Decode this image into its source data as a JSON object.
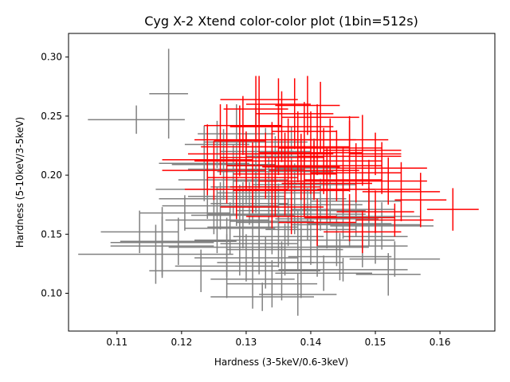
{
  "chart_data": {
    "type": "scatter",
    "title": "Cyg X-2 Xtend color-color plot (1bin=512s)",
    "xlabel": "Hardness (3-5keV/0.6-3keV)",
    "ylabel": "Hardness (5-10keV/3-5keV)",
    "xlim": [
      0.1025,
      0.1685
    ],
    "ylim": [
      0.068,
      0.32
    ],
    "xticks": [
      "0.11",
      "0.12",
      "0.13",
      "0.14",
      "0.15",
      "0.16"
    ],
    "yticks": [
      "0.10",
      "0.15",
      "0.20",
      "0.25",
      "0.30"
    ],
    "grid": false,
    "series": [
      {
        "color": "#808080",
        "points": [
          [
            0.113,
            0.247,
            0.0075,
            0.012
          ],
          [
            0.118,
            0.269,
            0.003,
            0.038
          ],
          [
            0.117,
            0.143,
            0.008,
            0.03
          ],
          [
            0.116,
            0.133,
            0.012,
            0.025
          ],
          [
            0.117,
            0.14,
            0.008,
            0.025
          ],
          [
            0.1195,
            0.144,
            0.009,
            0.02
          ],
          [
            0.1205,
            0.168,
            0.007,
            0.015
          ],
          [
            0.123,
            0.119,
            0.008,
            0.018
          ],
          [
            0.124,
            0.188,
            0.008,
            0.025
          ],
          [
            0.125,
            0.18,
            0.0085,
            0.03
          ],
          [
            0.1255,
            0.162,
            0.008,
            0.028
          ],
          [
            0.126,
            0.174,
            0.009,
            0.02
          ],
          [
            0.1265,
            0.209,
            0.008,
            0.03
          ],
          [
            0.127,
            0.139,
            0.009,
            0.025
          ],
          [
            0.127,
            0.123,
            0.008,
            0.027
          ],
          [
            0.1275,
            0.155,
            0.007,
            0.022
          ],
          [
            0.128,
            0.196,
            0.0085,
            0.03
          ],
          [
            0.1285,
            0.182,
            0.0075,
            0.025
          ],
          [
            0.129,
            0.145,
            0.007,
            0.03
          ],
          [
            0.1295,
            0.166,
            0.008,
            0.028
          ],
          [
            0.13,
            0.13,
            0.008,
            0.02
          ],
          [
            0.13,
            0.205,
            0.009,
            0.03
          ],
          [
            0.1305,
            0.176,
            0.006,
            0.018
          ],
          [
            0.131,
            0.156,
            0.007,
            0.03
          ],
          [
            0.131,
            0.112,
            0.0065,
            0.025
          ],
          [
            0.1315,
            0.19,
            0.007,
            0.022
          ],
          [
            0.132,
            0.142,
            0.006,
            0.026
          ],
          [
            0.132,
            0.167,
            0.008,
            0.03
          ],
          [
            0.1325,
            0.097,
            0.008,
            0.012
          ],
          [
            0.133,
            0.22,
            0.007,
            0.02
          ],
          [
            0.133,
            0.126,
            0.0075,
            0.022
          ],
          [
            0.1335,
            0.185,
            0.008,
            0.03
          ],
          [
            0.134,
            0.161,
            0.0065,
            0.028
          ],
          [
            0.134,
            0.108,
            0.007,
            0.02
          ],
          [
            0.1345,
            0.203,
            0.009,
            0.03
          ],
          [
            0.135,
            0.148,
            0.007,
            0.026
          ],
          [
            0.135,
            0.173,
            0.006,
            0.02
          ],
          [
            0.1355,
            0.119,
            0.006,
            0.025
          ],
          [
            0.136,
            0.195,
            0.008,
            0.03
          ],
          [
            0.136,
            0.137,
            0.009,
            0.022
          ],
          [
            0.1365,
            0.16,
            0.008,
            0.02
          ],
          [
            0.137,
            0.216,
            0.007,
            0.025
          ],
          [
            0.1375,
            0.18,
            0.008,
            0.03
          ],
          [
            0.138,
            0.145,
            0.005,
            0.025
          ],
          [
            0.138,
            0.099,
            0.006,
            0.018
          ],
          [
            0.1385,
            0.126,
            0.0065,
            0.03
          ],
          [
            0.139,
            0.192,
            0.008,
            0.028
          ],
          [
            0.1395,
            0.167,
            0.009,
            0.022
          ],
          [
            0.14,
            0.154,
            0.007,
            0.03
          ],
          [
            0.1405,
            0.206,
            0.006,
            0.025
          ],
          [
            0.141,
            0.139,
            0.008,
            0.025
          ],
          [
            0.1415,
            0.175,
            0.0065,
            0.022
          ],
          [
            0.142,
            0.117,
            0.0075,
            0.015
          ],
          [
            0.1425,
            0.163,
            0.008,
            0.025
          ],
          [
            0.143,
            0.188,
            0.007,
            0.03
          ],
          [
            0.144,
            0.145,
            0.009,
            0.022
          ],
          [
            0.1445,
            0.131,
            0.008,
            0.02
          ],
          [
            0.145,
            0.171,
            0.008,
            0.025
          ],
          [
            0.146,
            0.159,
            0.0065,
            0.02
          ],
          [
            0.147,
            0.178,
            0.007,
            0.028
          ],
          [
            0.148,
            0.14,
            0.007,
            0.018
          ],
          [
            0.149,
            0.165,
            0.008,
            0.025
          ],
          [
            0.15,
            0.148,
            0.005,
            0.023
          ],
          [
            0.151,
            0.157,
            0.008,
            0.02
          ],
          [
            0.152,
            0.116,
            0.005,
            0.018
          ],
          [
            0.153,
            0.129,
            0.007,
            0.015
          ],
          [
            0.1235,
            0.21,
            0.007,
            0.032
          ],
          [
            0.1255,
            0.226,
            0.005,
            0.02
          ],
          [
            0.1285,
            0.235,
            0.006,
            0.025
          ],
          [
            0.1315,
            0.228,
            0.008,
            0.03
          ],
          [
            0.1135,
            0.152,
            0.006,
            0.018
          ],
          [
            0.1385,
            0.17,
            0.01,
            0.03
          ],
          [
            0.147,
            0.158,
            0.01,
            0.01
          ],
          [
            0.145,
            0.12,
            0.01,
            0.01
          ],
          [
            0.129,
            0.18,
            0.011,
            0.012
          ]
        ]
      },
      {
        "color": "#ff0000",
        "points": [
          [
            0.127,
            0.218,
            0.006,
            0.042
          ],
          [
            0.129,
            0.229,
            0.004,
            0.03
          ],
          [
            0.13,
            0.212,
            0.008,
            0.025
          ],
          [
            0.131,
            0.198,
            0.007,
            0.03
          ],
          [
            0.132,
            0.224,
            0.009,
            0.035
          ],
          [
            0.133,
            0.208,
            0.006,
            0.028
          ],
          [
            0.134,
            0.215,
            0.008,
            0.03
          ],
          [
            0.1345,
            0.19,
            0.007,
            0.025
          ],
          [
            0.135,
            0.23,
            0.006,
            0.03
          ],
          [
            0.136,
            0.201,
            0.008,
            0.035
          ],
          [
            0.1365,
            0.218,
            0.007,
            0.03
          ],
          [
            0.137,
            0.187,
            0.009,
            0.025
          ],
          [
            0.138,
            0.224,
            0.008,
            0.03
          ],
          [
            0.1385,
            0.207,
            0.006,
            0.028
          ],
          [
            0.139,
            0.195,
            0.007,
            0.03
          ],
          [
            0.14,
            0.219,
            0.008,
            0.035
          ],
          [
            0.1405,
            0.204,
            0.007,
            0.025
          ],
          [
            0.141,
            0.23,
            0.006,
            0.03
          ],
          [
            0.142,
            0.212,
            0.009,
            0.028
          ],
          [
            0.1425,
            0.193,
            0.007,
            0.03
          ],
          [
            0.143,
            0.223,
            0.008,
            0.025
          ],
          [
            0.144,
            0.208,
            0.007,
            0.03
          ],
          [
            0.145,
            0.196,
            0.006,
            0.028
          ],
          [
            0.146,
            0.216,
            0.008,
            0.03
          ],
          [
            0.147,
            0.202,
            0.007,
            0.025
          ],
          [
            0.148,
            0.221,
            0.006,
            0.03
          ],
          [
            0.149,
            0.188,
            0.008,
            0.025
          ],
          [
            0.15,
            0.218,
            0.004,
            0.018
          ],
          [
            0.151,
            0.206,
            0.007,
            0.022
          ],
          [
            0.152,
            0.195,
            0.006,
            0.02
          ],
          [
            0.154,
            0.186,
            0.006,
            0.025
          ],
          [
            0.157,
            0.179,
            0.004,
            0.023
          ],
          [
            0.162,
            0.171,
            0.004,
            0.018
          ],
          [
            0.124,
            0.213,
            0.007,
            0.03
          ],
          [
            0.125,
            0.204,
            0.008,
            0.025
          ],
          [
            0.126,
            0.23,
            0.004,
            0.03
          ],
          [
            0.1285,
            0.188,
            0.008,
            0.025
          ],
          [
            0.1295,
            0.242,
            0.006,
            0.025
          ],
          [
            0.1315,
            0.256,
            0.005,
            0.028
          ],
          [
            0.1355,
            0.241,
            0.008,
            0.03
          ],
          [
            0.1375,
            0.252,
            0.006,
            0.03
          ],
          [
            0.1395,
            0.259,
            0.005,
            0.025
          ],
          [
            0.1415,
            0.249,
            0.006,
            0.03
          ],
          [
            0.134,
            0.173,
            0.008,
            0.018
          ],
          [
            0.137,
            0.165,
            0.007,
            0.015
          ],
          [
            0.141,
            0.16,
            0.006,
            0.02
          ],
          [
            0.146,
            0.164,
            0.007,
            0.02
          ],
          [
            0.148,
            0.152,
            0.006,
            0.018
          ],
          [
            0.15,
            0.169,
            0.006,
            0.018
          ],
          [
            0.153,
            0.162,
            0.006,
            0.014
          ],
          [
            0.139,
            0.237,
            0.005,
            0.025
          ],
          [
            0.135,
            0.26,
            0.005,
            0.022
          ],
          [
            0.132,
            0.264,
            0.006,
            0.02
          ],
          [
            0.146,
            0.23,
            0.006,
            0.02
          ]
        ]
      }
    ]
  }
}
